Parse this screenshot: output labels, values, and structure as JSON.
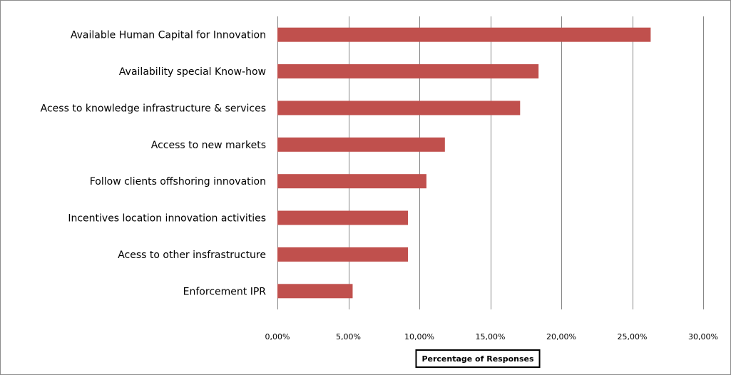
{
  "chart_data": {
    "type": "bar",
    "orientation": "horizontal",
    "categories": [
      "Available Human Capital for Innovation",
      "Availability special Know-how",
      "Acess to knowledge infrastructure & services",
      "Access to new markets",
      "Follow clients offshoring innovation",
      "Incentives location innovation activities",
      "Acess to other insfrastructure",
      "Enforcement IPR"
    ],
    "values": [
      26.3,
      18.4,
      17.1,
      11.8,
      10.5,
      9.2,
      9.2,
      5.3
    ],
    "xlim": [
      0,
      30
    ],
    "xticks": [
      0,
      5,
      10,
      15,
      20,
      25,
      30
    ],
    "xtick_labels": [
      "0,00%",
      "5,00%",
      "10,00%",
      "15,00%",
      "20,00%",
      "25,00%",
      "30,00%"
    ],
    "xlabel": "Percentage of Responses",
    "ylabel": "",
    "title": "",
    "grid": "vertical",
    "legend": "none",
    "bar_color": "#c0504d",
    "grid_color": "#868686"
  }
}
